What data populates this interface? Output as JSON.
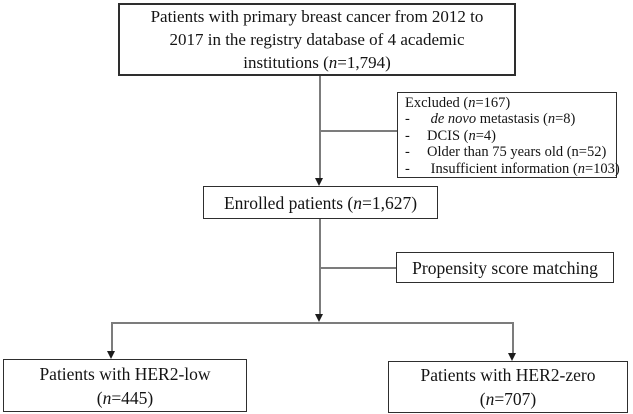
{
  "diagram_title": "Patient enrollment flowchart",
  "colors": {
    "background": "#ffffff",
    "box_border": "#2e2e2e",
    "connector_line": "#7c7c7c",
    "arrowhead": "#1c1c1c",
    "text": "#141414"
  },
  "boxes": {
    "source": {
      "lines": [
        [
          {
            "t": "Patients with primary breast cancer from 2012 to"
          }
        ],
        [
          {
            "t": "2017 in the registry database of 4 academic"
          }
        ],
        [
          {
            "t": "institutions ("
          },
          {
            "t": "n",
            "i": true
          },
          {
            "t": "=1,794)"
          }
        ]
      ]
    },
    "excluded": {
      "bullet": "-",
      "title": [
        {
          "t": "Excluded ("
        },
        {
          "t": "n",
          "i": true
        },
        {
          "t": "=167)"
        }
      ],
      "items": [
        [
          {
            "t": " "
          },
          {
            "t": "de novo",
            "i": true
          },
          {
            "t": " metastasis ("
          },
          {
            "t": "n",
            "i": true
          },
          {
            "t": "=8)"
          }
        ],
        [
          {
            "t": "DCIS ("
          },
          {
            "t": "n",
            "i": true
          },
          {
            "t": "=4)"
          }
        ],
        [
          {
            "t": "Older than 75 years old (n=52)"
          }
        ],
        [
          {
            "t": " Insufficient information ("
          },
          {
            "t": "n",
            "i": true
          },
          {
            "t": "=103)"
          }
        ]
      ]
    },
    "enrolled": {
      "lines": [
        [
          {
            "t": "Enrolled patients ("
          },
          {
            "t": "n",
            "i": true
          },
          {
            "t": "=1,627)"
          }
        ]
      ]
    },
    "matching": {
      "lines": [
        [
          {
            "t": "Propensity score matching"
          }
        ]
      ]
    },
    "her2_low": {
      "lines": [
        [
          {
            "t": "Patients with HER2-low"
          }
        ],
        [
          {
            "t": "("
          },
          {
            "t": "n",
            "i": true
          },
          {
            "t": "=445)"
          }
        ]
      ]
    },
    "her2_zero": {
      "lines": [
        [
          {
            "t": "Patients with HER2-zero"
          }
        ],
        [
          {
            "t": "("
          },
          {
            "t": "n",
            "i": true
          },
          {
            "t": "=707)"
          }
        ]
      ]
    }
  }
}
